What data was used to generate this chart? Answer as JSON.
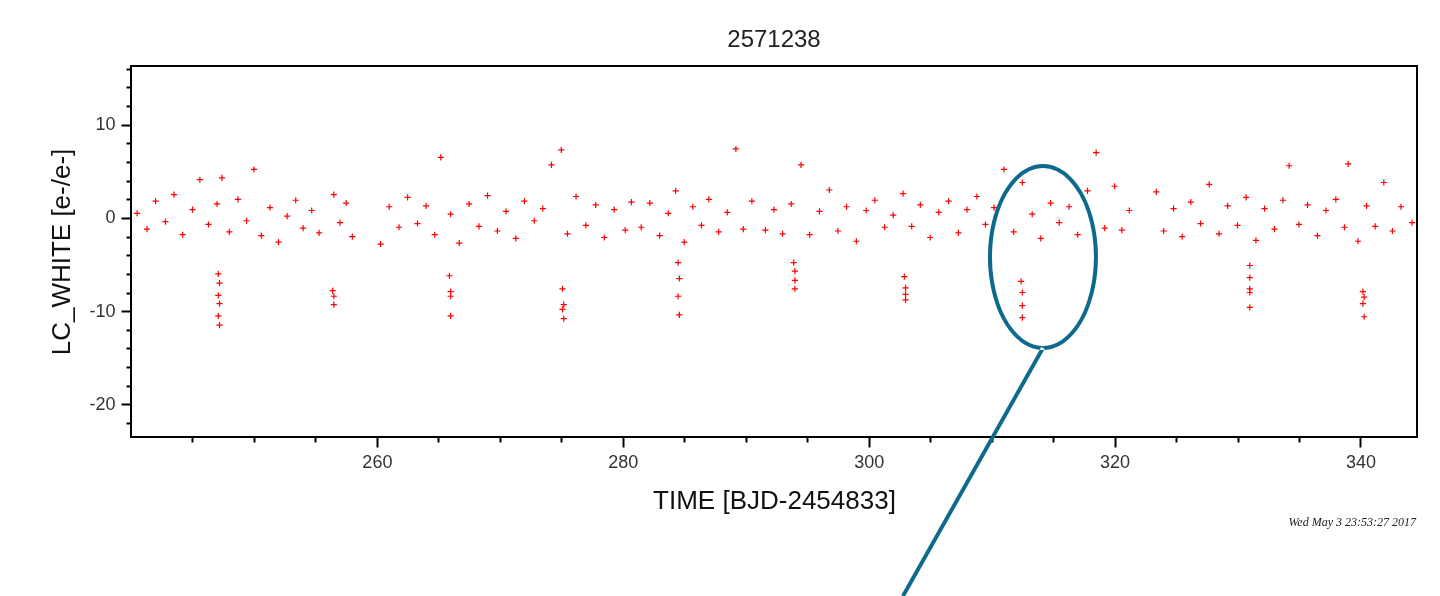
{
  "chart_data": {
    "type": "scatter",
    "title": "2571238",
    "xlabel": "TIME [BJD-2454833]",
    "ylabel": "LC_WHITE [e-/e-]",
    "annotations": [
      "Wed May  3 23:53:27 2017"
    ],
    "xlim": [
      240,
      344.6
    ],
    "ylim": [
      -23.5,
      16.3
    ],
    "xticks": [
      {
        "value": 245,
        "label": null
      },
      {
        "value": 250,
        "label": null
      },
      {
        "value": 255,
        "label": null
      },
      260,
      {
        "value": 265,
        "label": null
      },
      {
        "value": 270,
        "label": null
      },
      {
        "value": 275,
        "label": null
      },
      280,
      {
        "value": 285,
        "label": null
      },
      {
        "value": 290,
        "label": null
      },
      {
        "value": 295,
        "label": null
      },
      300,
      {
        "value": 305,
        "label": null
      },
      {
        "value": 310,
        "label": null
      },
      {
        "value": 315,
        "label": null
      },
      320,
      {
        "value": 325,
        "label": null
      },
      {
        "value": 330,
        "label": null
      },
      {
        "value": 335,
        "label": null
      },
      340
    ],
    "yticks": [
      {
        "value": -22,
        "label": null
      },
      -20,
      {
        "value": -18,
        "label": null
      },
      {
        "value": -16,
        "label": null
      },
      {
        "value": -14,
        "label": null
      },
      {
        "value": -12,
        "label": null
      },
      -10,
      {
        "value": -8,
        "label": null
      },
      {
        "value": -6,
        "label": null
      },
      {
        "value": -4,
        "label": null
      },
      {
        "value": -2,
        "label": null
      },
      0,
      {
        "value": 2,
        "label": null
      },
      {
        "value": 4,
        "label": null
      },
      {
        "value": 6,
        "label": null
      },
      {
        "value": 8,
        "label": null
      },
      10,
      {
        "value": 12,
        "label": null
      },
      {
        "value": 14,
        "label": null
      },
      {
        "value": 16,
        "label": null
      }
    ],
    "grid": false,
    "marker": "cross",
    "series": [
      {
        "color": "#ff0000",
        "x": [
          240.5,
          241.3,
          242,
          242.8,
          243.5,
          244.2,
          245,
          245.6,
          246.3,
          247,
          247.4,
          248,
          248.7,
          249.4,
          250,
          250.6,
          251.3,
          252,
          252.7,
          253.4,
          254,
          254.7,
          255.3,
          256.5,
          257,
          257.5,
          258,
          260.3,
          261,
          261.8,
          262.5,
          263.3,
          264,
          264.7,
          265.2,
          266,
          266.7,
          267.5,
          268.3,
          269,
          269.8,
          270.5,
          271.3,
          272,
          272.8,
          273.5,
          274.2,
          275,
          275.5,
          276.2,
          277,
          277.8,
          278.5,
          279.3,
          280.2,
          280.7,
          281.5,
          282.2,
          283,
          283.7,
          284.3,
          285,
          285.7,
          286.4,
          287,
          287.8,
          288.5,
          289.2,
          289.8,
          290.5,
          291.6,
          292.3,
          293,
          293.7,
          294.5,
          295.2,
          296,
          296.8,
          297.5,
          298.2,
          299,
          299.8,
          300.5,
          301.3,
          302,
          302.8,
          303.5,
          304.2,
          305,
          305.7,
          306.5,
          307.3,
          308,
          308.8,
          309.5,
          310.2,
          311,
          311.8,
          312.5,
          313.3,
          314,
          314.8,
          315.5,
          316.3,
          317,
          317.8,
          318.5,
          319.2,
          320,
          320.6,
          321.2,
          323.4,
          324,
          324.8,
          325.5,
          326.2,
          327,
          327.7,
          328.5,
          329.2,
          330,
          330.7,
          331.5,
          332.2,
          333,
          333.7,
          334.2,
          335,
          335.7,
          336.5,
          337.2,
          338,
          338.7,
          339,
          339.8,
          340.5,
          341.2,
          341.9,
          342.6,
          343.3,
          344.2,
          247.1,
          247.2,
          247.1,
          247.2,
          247.1,
          247.2,
          256.4,
          256.5,
          256.5,
          265.9,
          266,
          266,
          266,
          275.1,
          275.2,
          275.1,
          275.2,
          284.5,
          284.6,
          284.5,
          284.6,
          293.9,
          294,
          294,
          294,
          302.9,
          303,
          303,
          303,
          312.4,
          312.5,
          312.5,
          312.5,
          331,
          331,
          331,
          331,
          331,
          340.2,
          340.3,
          340.2,
          340.3
        ],
        "values": [
          0.5,
          -1.2,
          1.8,
          -0.4,
          2.5,
          -1.8,
          0.9,
          4.1,
          -0.7,
          1.5,
          4.3,
          -1.5,
          2.0,
          -0.3,
          5.2,
          -1.9,
          1.1,
          -2.6,
          0.2,
          1.9,
          -1.1,
          0.8,
          -1.6,
          2.5,
          -0.5,
          1.6,
          -2.0,
          -2.8,
          1.2,
          -1.0,
          2.2,
          -0.6,
          1.3,
          -1.8,
          6.5,
          0.4,
          -2.7,
          1.5,
          -0.9,
          2.4,
          -1.4,
          0.7,
          -2.2,
          1.8,
          -0.3,
          1.0,
          5.7,
          7.3,
          -1.7,
          2.3,
          -0.8,
          1.4,
          -2.1,
          0.9,
          -1.3,
          1.7,
          -1.0,
          1.6,
          -1.9,
          0.5,
          2.9,
          -2.6,
          1.2,
          -0.8,
          2.0,
          -1.5,
          0.6,
          7.4,
          -1.2,
          1.8,
          -1.3,
          0.9,
          -1.7,
          1.5,
          5.7,
          -1.8,
          0.7,
          3.0,
          -1.4,
          1.2,
          -2.5,
          0.8,
          1.9,
          -1.0,
          0.3,
          2.6,
          -0.9,
          1.4,
          -2.1,
          0.6,
          1.8,
          -1.6,
          0.9,
          2.3,
          -0.7,
          1.1,
          5.2,
          -1.5,
          3.8,
          0.4,
          -2.2,
          1.6,
          -0.5,
          1.2,
          -1.8,
          2.9,
          7.0,
          -1.1,
          3.4,
          -1.3,
          0.8,
          2.8,
          -1.4,
          1.0,
          -2.0,
          1.7,
          -0.6,
          3.6,
          -1.7,
          1.3,
          -0.8,
          2.2,
          -2.4,
          1.0,
          -1.2,
          1.9,
          5.6,
          -0.7,
          1.4,
          -1.9,
          0.8,
          2.0,
          -1.0,
          5.8,
          -2.5,
          1.3,
          -0.9,
          3.8,
          -1.4,
          1.2,
          -0.5,
          -6,
          -7,
          -8.3,
          -9.2,
          -10.5,
          -11.5,
          -7.8,
          -8.4,
          -9.3,
          -6.2,
          -7.9,
          -8.4,
          -10.5,
          -7.6,
          -9.3,
          -9.8,
          -10.8,
          -4.8,
          -6.5,
          -8.4,
          -10.4,
          -4.8,
          -5.7,
          -6.7,
          -7.6,
          -6.3,
          -7.5,
          -8.2,
          -8.8,
          -6.8,
          -8.0,
          -9.4,
          -10.7,
          -5.1,
          -6.4,
          -7.6,
          -8.0,
          -9.6,
          -7.9,
          -8.5,
          -9.2,
          -10.6
        ]
      }
    ]
  }
}
